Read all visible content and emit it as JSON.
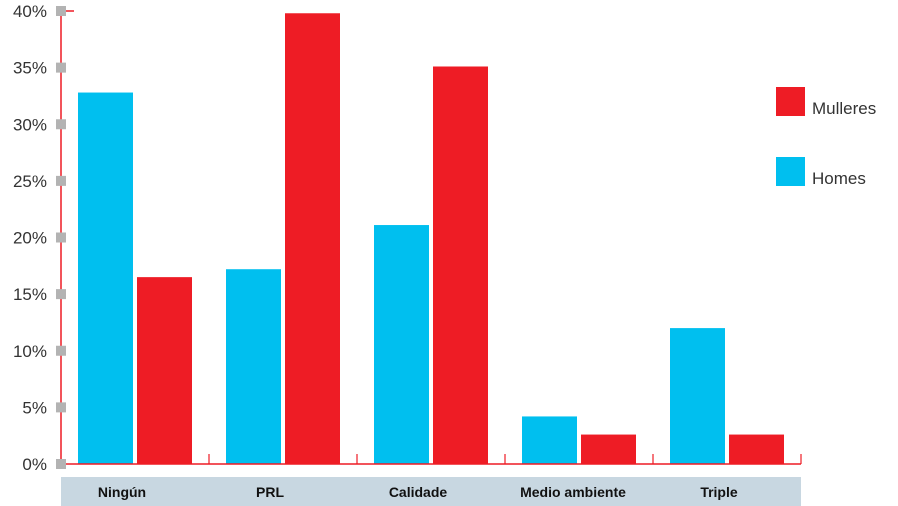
{
  "chart_data": {
    "type": "bar",
    "categories": [
      "Ningún",
      "PRL",
      "Calidade",
      "Medio ambiente",
      "Triple"
    ],
    "series": [
      {
        "name": "Homes",
        "values": [
          32.8,
          17.2,
          21.1,
          4.2,
          12.0
        ],
        "color": "#00bfef"
      },
      {
        "name": "Mulleres",
        "values": [
          16.5,
          39.8,
          35.1,
          2.6,
          2.6
        ],
        "color": "#ee1c25"
      }
    ],
    "y_ticks": [
      "0%",
      "5%",
      "10%",
      "15%",
      "20%",
      "25%",
      "30%",
      "35%",
      "40%"
    ],
    "ylim": [
      0,
      40
    ],
    "legend": [
      {
        "label": "Mulleres",
        "color": "#ee1c25"
      },
      {
        "label": "Homes",
        "color": "#00bfef"
      }
    ],
    "legend_position": "right",
    "axis_color": "#ee1c25",
    "tick_marker_color": "#b3b3b3",
    "category_band_color": "#c8d7e1",
    "grid": false
  }
}
